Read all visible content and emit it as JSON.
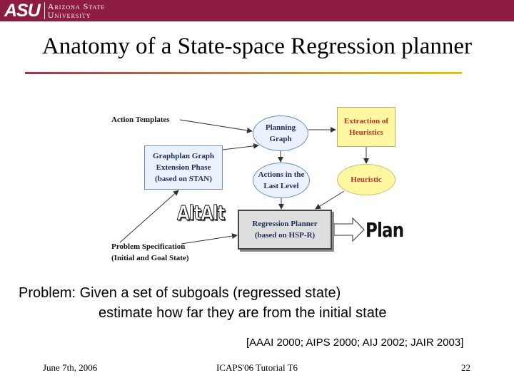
{
  "header": {
    "logo_mark": "ASU",
    "university_line1": "Arizona State",
    "university_line2": "University",
    "brand_color": "#8c1d40"
  },
  "title": "Anatomy of a State-space Regression planner",
  "diagram": {
    "nodes": {
      "planning_graph": "Planning\nGraph",
      "extraction": "Extraction of\nHeuristics",
      "actions_last_level": "Actions in the\nLast Level",
      "heuristic": "Heuristic",
      "graphplan": "Graphplan Graph\nExtension Phase\n(based on STAN)",
      "regression_planner": "Regression Planner\n(based on HSP-R)"
    },
    "labels": {
      "action_templates": "Action Templates",
      "problem_spec": "Problem Specification\n(Initial and Goal State)"
    },
    "altalt_logo": "AltAlt",
    "plan_word": "Plan"
  },
  "body": {
    "problem": "Problem: Given a set of subgoals (regressed state)",
    "estimate": "estimate how far they are from the initial state",
    "refs": "[AAAI 2000; AIPS 2000; AIJ 2002; JAIR 2003]"
  },
  "footer": {
    "date": "June 7th, 2006",
    "venue": "ICAPS'06 Tutorial T6",
    "page": "22"
  }
}
